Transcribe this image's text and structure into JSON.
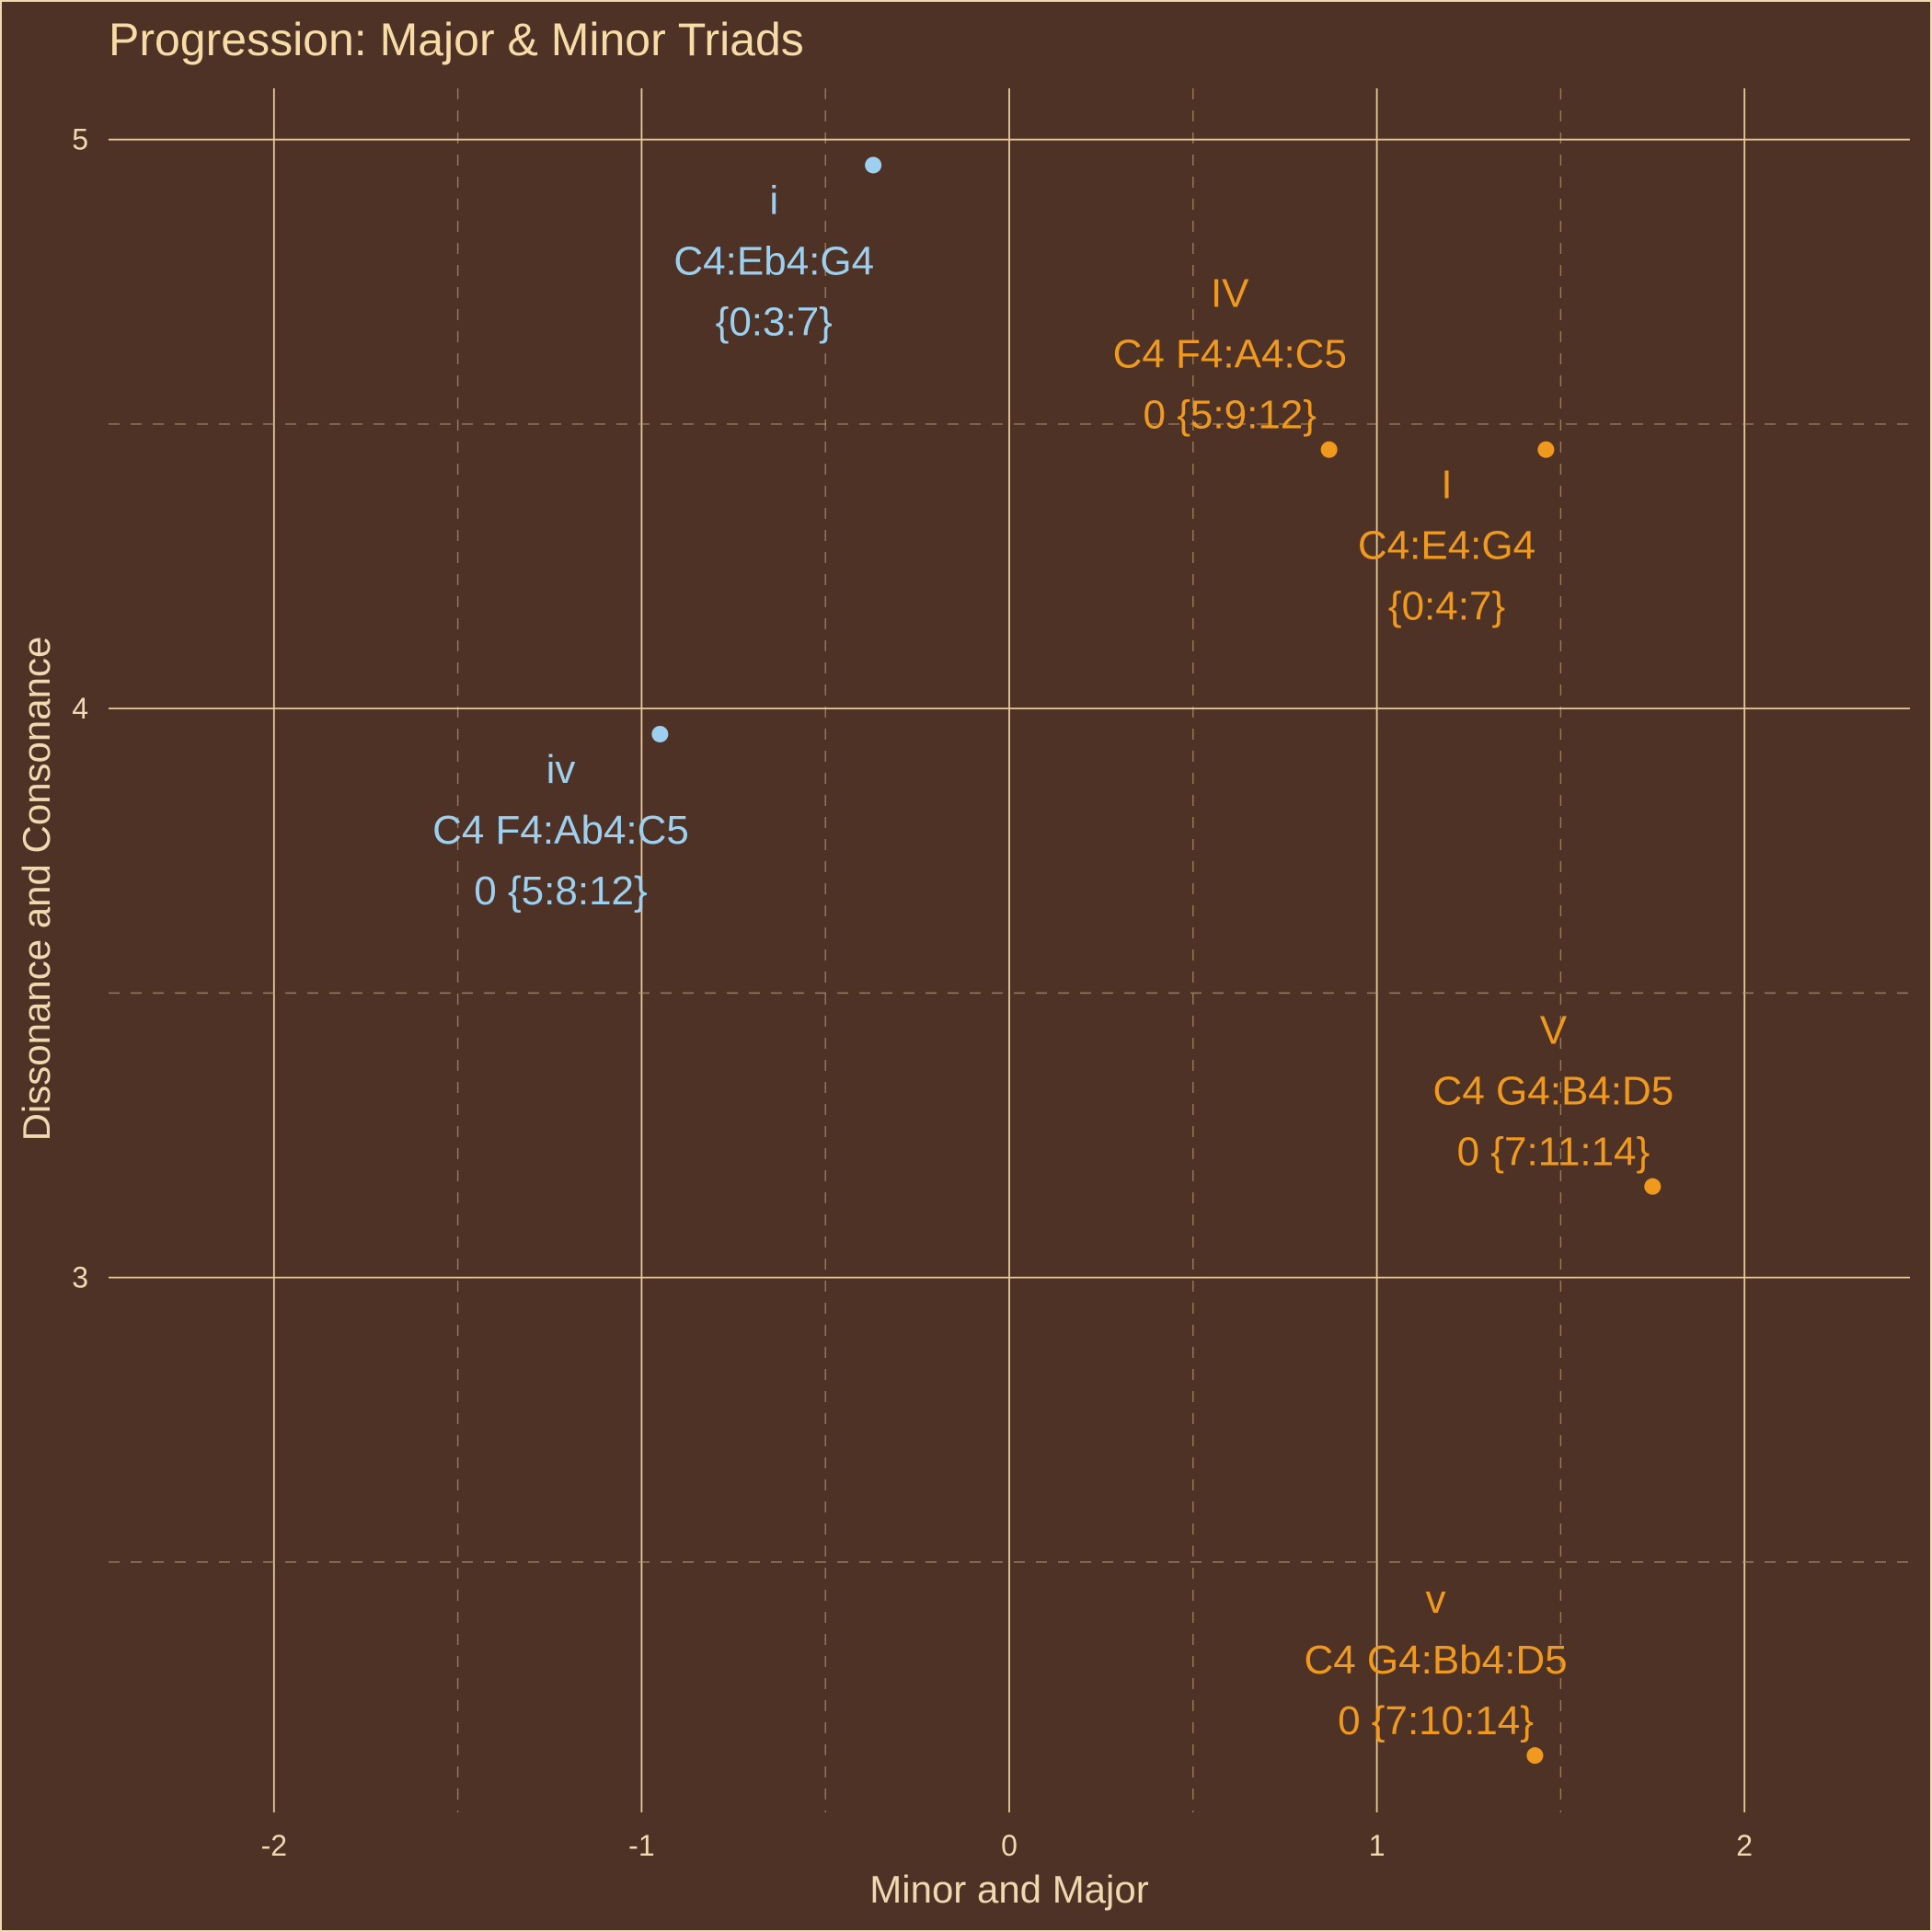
{
  "chart_data": {
    "type": "scatter",
    "title": "Progression: Major & Minor Triads",
    "xlabel": "Minor and Major",
    "ylabel": "Dissonance and Consonance",
    "xlim": [
      -2.45,
      2.45
    ],
    "ylim": [
      2.06,
      5.09
    ],
    "x_ticks": [
      -2,
      -1,
      0,
      1,
      2
    ],
    "y_ticks": [
      3,
      4,
      5
    ],
    "grid": true,
    "colors": {
      "minor": "#9dcfee",
      "major": "#ef9a1e",
      "background": "#4e3226"
    },
    "points": [
      {
        "id": "i",
        "x": -0.37,
        "y": 4.955,
        "group": "minor",
        "label_pos": "below",
        "lines": [
          "i",
          "C4:Eb4:G4",
          "{0:3:7}"
        ]
      },
      {
        "id": "iv",
        "x": -0.95,
        "y": 3.955,
        "group": "minor",
        "label_pos": "below",
        "lines": [
          "iv",
          "C4 F4:Ab4:C5",
          "0 {5:8:12}"
        ]
      },
      {
        "id": "IV",
        "x": 0.87,
        "y": 4.455,
        "group": "major",
        "label_pos": "above",
        "lines": [
          "IV",
          "C4 F4:A4:C5",
          "0 {5:9:12}"
        ]
      },
      {
        "id": "I",
        "x": 1.46,
        "y": 4.455,
        "group": "major",
        "label_pos": "below",
        "lines": [
          "I",
          "C4:E4:G4",
          "{0:4:7}"
        ]
      },
      {
        "id": "V",
        "x": 1.75,
        "y": 3.16,
        "group": "major",
        "label_pos": "above",
        "lines": [
          "V",
          "C4 G4:B4:D5",
          "0 {7:11:14}"
        ]
      },
      {
        "id": "v",
        "x": 1.43,
        "y": 2.16,
        "group": "major",
        "label_pos": "above",
        "lines": [
          "v",
          "C4 G4:Bb4:D5",
          "0 {7:10:14}"
        ]
      }
    ]
  }
}
